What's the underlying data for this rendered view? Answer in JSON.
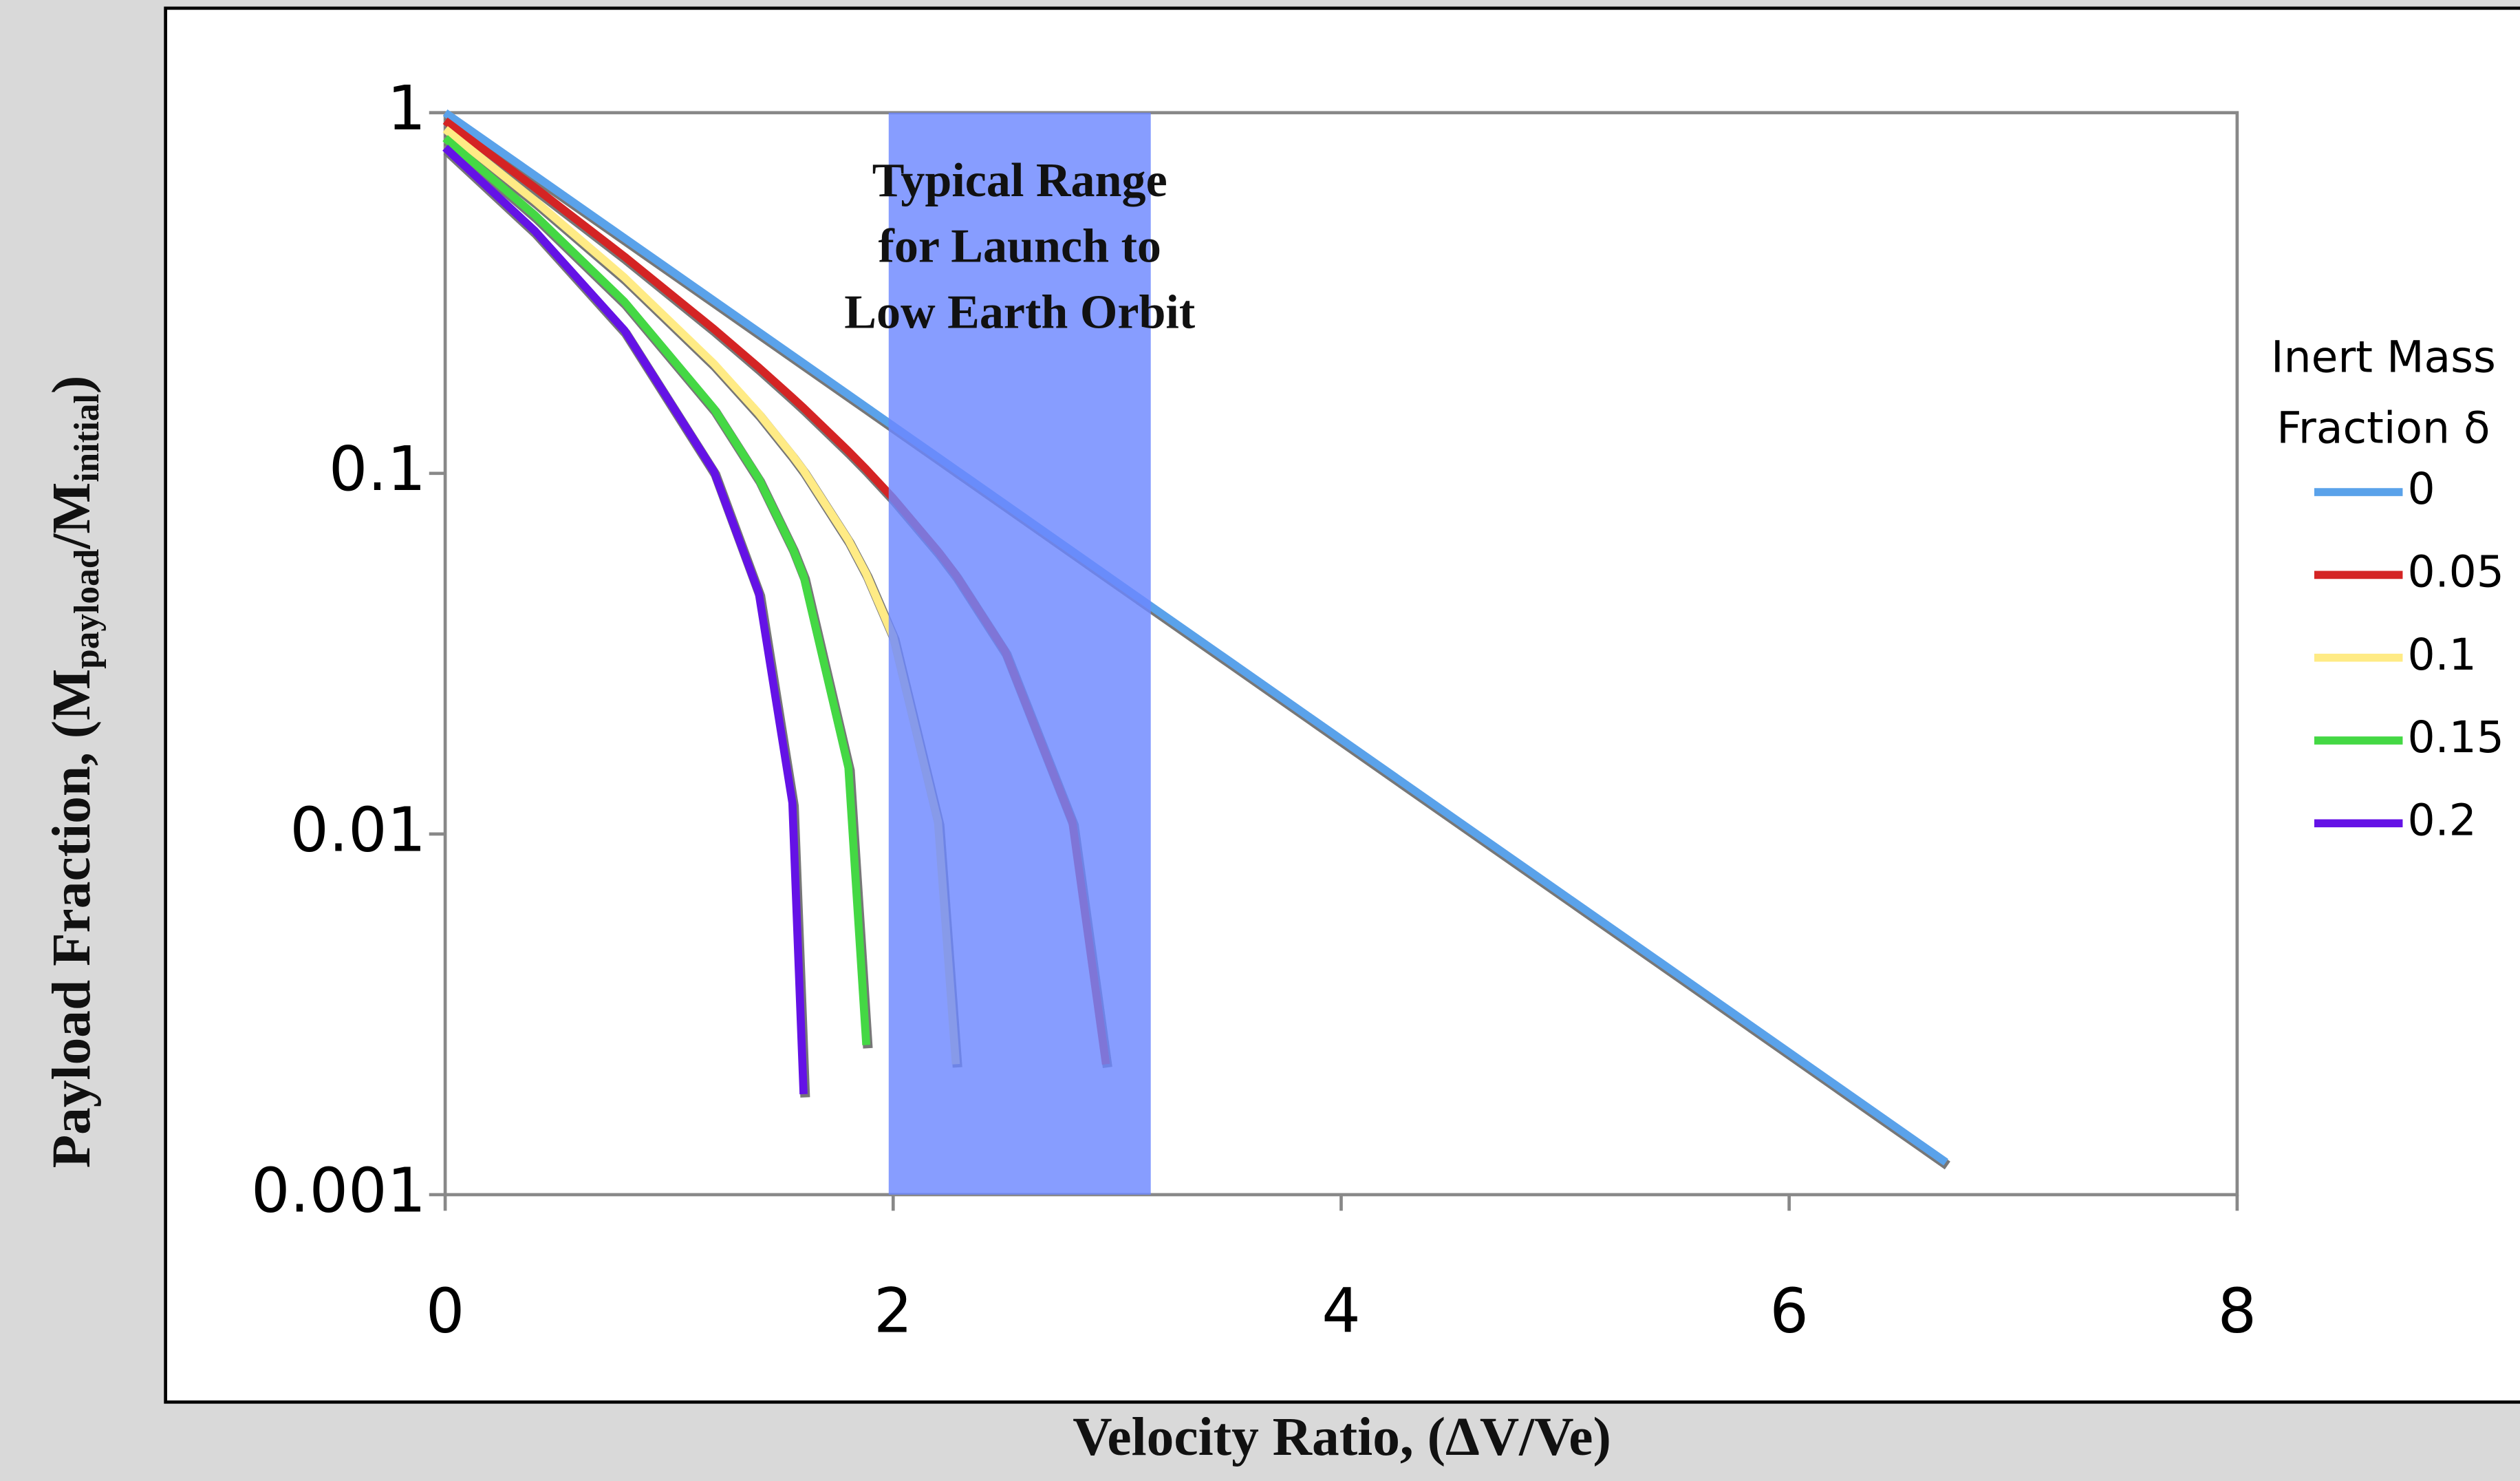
{
  "chart_data": {
    "type": "line",
    "xlabel": "Velocity Ratio, (ΔV/Ve)",
    "ylabel": [
      "Payload Fraction, (M",
      "payload",
      "/M",
      "initial",
      ")"
    ],
    "x": [
      0,
      0.4,
      0.8,
      1.2,
      1.4,
      1.55,
      1.6,
      1.8,
      1.88,
      2.0,
      2.2,
      2.28,
      2.5,
      2.8,
      2.95,
      3.5,
      4.5,
      5.5,
      6.7
    ],
    "series": [
      {
        "name": "0",
        "color": "#5aa2ea",
        "values": [
          1,
          0.6703,
          0.4493,
          0.3012,
          0.2466,
          0.2122,
          0.2019,
          0.1653,
          0.1526,
          0.1353,
          0.1108,
          0.1023,
          0.0821,
          0.0608,
          0.0523,
          0.0302,
          0.0111,
          0.00409,
          0.00123
        ]
      },
      {
        "name": "0.05",
        "color": "#d42424",
        "values": [
          0.95,
          0.6203,
          0.3993,
          0.2512,
          0.1966,
          0.1622,
          0.1519,
          0.1153,
          0.1026,
          0.0853,
          0.0608,
          0.0523,
          0.0321,
          0.0108,
          0.0023,
          null,
          null,
          null,
          null
        ]
      },
      {
        "name": "0.1",
        "color": "#ffeb85",
        "values": [
          0.9,
          0.5703,
          0.3493,
          0.2012,
          0.1466,
          0.1122,
          0.1019,
          0.0653,
          0.0526,
          0.0353,
          0.0108,
          0.0023,
          null,
          null,
          null,
          null,
          null,
          null,
          null
        ]
      },
      {
        "name": "0.15",
        "color": "#44d844",
        "values": [
          0.85,
          0.5203,
          0.2993,
          0.1512,
          0.0966,
          0.0622,
          0.0519,
          0.0153,
          0.0026,
          null,
          null,
          null,
          null,
          null,
          null,
          null,
          null,
          null,
          null
        ]
      },
      {
        "name": "0.2",
        "color": "#6412e6",
        "values": [
          0.8,
          0.4703,
          0.2493,
          0.1012,
          0.0466,
          0.0122,
          0.0019,
          null,
          null,
          null,
          null,
          null,
          null,
          null,
          null,
          null,
          null,
          null,
          null
        ]
      }
    ],
    "xlim": [
      0,
      8
    ],
    "xticks": [
      0,
      2,
      4,
      6,
      8
    ],
    "ylim": [
      0.001,
      1
    ],
    "yticks": [
      0.001,
      0.01,
      0.1,
      1
    ],
    "ylog": true,
    "band": {
      "xrange": [
        1.98,
        3.15
      ],
      "color": "#6c88ff",
      "label": [
        "Typical Range",
        "for Launch to",
        "Low Earth Orbit"
      ]
    },
    "legend_title": [
      "Inert Mass",
      "Fraction δ"
    ],
    "legend": "right"
  }
}
